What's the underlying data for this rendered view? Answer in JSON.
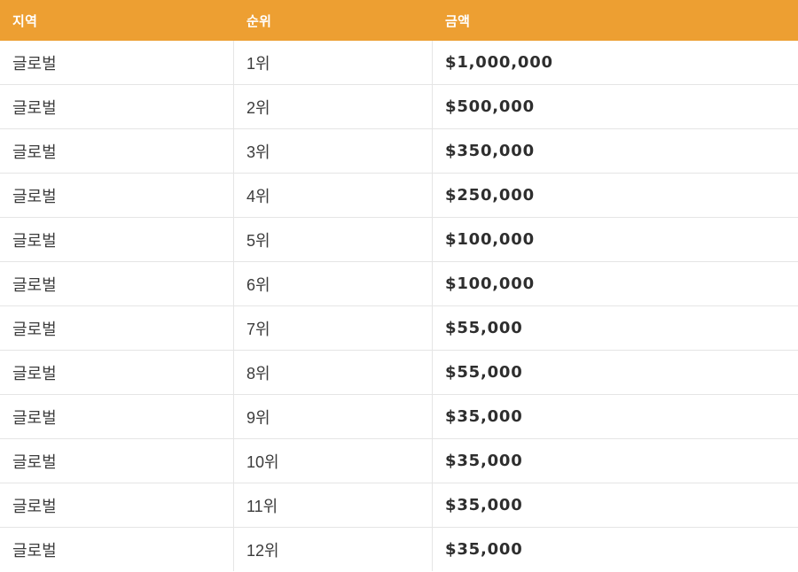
{
  "colors": {
    "header_bg": "#ED9F32",
    "header_text": "#FFFFFF",
    "body_text": "#3C3C3C",
    "amount_text": "#2E2E2E",
    "row_border": "#E5E5E5"
  },
  "table": {
    "columns": [
      {
        "key": "region",
        "label": "지역"
      },
      {
        "key": "rank",
        "label": "순위"
      },
      {
        "key": "amount",
        "label": "금액"
      }
    ],
    "rows": [
      {
        "region": "글로벌",
        "rank": "1위",
        "amount": "$1,000,000"
      },
      {
        "region": "글로벌",
        "rank": "2위",
        "amount": "$500,000"
      },
      {
        "region": "글로벌",
        "rank": "3위",
        "amount": "$350,000"
      },
      {
        "region": "글로벌",
        "rank": "4위",
        "amount": "$250,000"
      },
      {
        "region": "글로벌",
        "rank": "5위",
        "amount": "$100,000"
      },
      {
        "region": "글로벌",
        "rank": "6위",
        "amount": "$100,000"
      },
      {
        "region": "글로벌",
        "rank": "7위",
        "amount": "$55,000"
      },
      {
        "region": "글로벌",
        "rank": "8위",
        "amount": "$55,000"
      },
      {
        "region": "글로벌",
        "rank": "9위",
        "amount": "$35,000"
      },
      {
        "region": "글로벌",
        "rank": "10위",
        "amount": "$35,000"
      },
      {
        "region": "글로벌",
        "rank": "11위",
        "amount": "$35,000"
      },
      {
        "region": "글로벌",
        "rank": "12위",
        "amount": "$35,000"
      }
    ]
  }
}
